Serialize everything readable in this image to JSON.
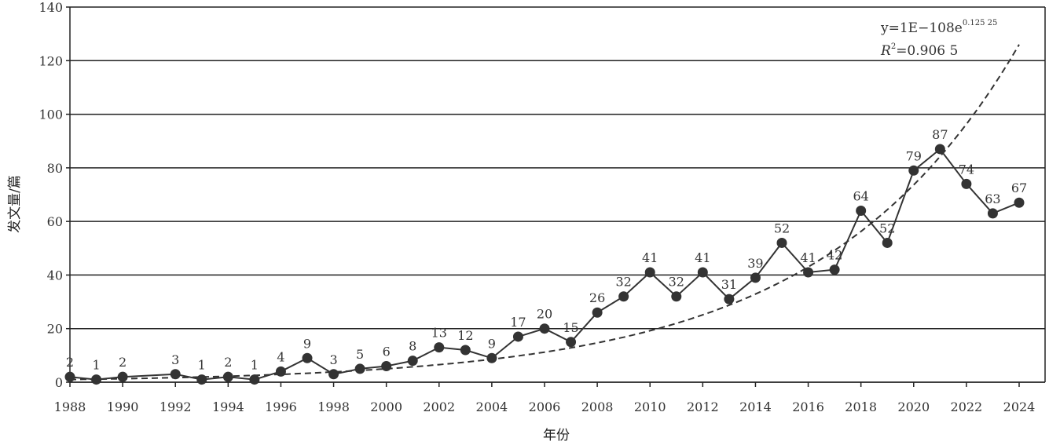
{
  "chart_data": {
    "type": "line",
    "xlabel": "年份",
    "ylabel": "发文量/篇",
    "ylim": [
      0,
      140
    ],
    "yticks": [
      0,
      20,
      40,
      60,
      80,
      100,
      120,
      140
    ],
    "xlim": [
      1988,
      2024
    ],
    "xticks": [
      1988,
      1990,
      1992,
      1994,
      1996,
      1998,
      2000,
      2002,
      2004,
      2006,
      2008,
      2010,
      2012,
      2014,
      2016,
      2018,
      2020,
      2022,
      2024
    ],
    "grid": "horizontal",
    "series": [
      {
        "x": [
          1988,
          1989,
          1990,
          1992,
          1993,
          1994,
          1995,
          1996,
          1997,
          1998,
          1999,
          2000,
          2001,
          2002,
          2003,
          2004,
          2005,
          2006,
          2007,
          2008,
          2009,
          2010,
          2011,
          2012,
          2013,
          2014,
          2015,
          2016,
          2017,
          2018,
          2019,
          2020,
          2021,
          2022,
          2023,
          2024
        ],
        "values": [
          2,
          1,
          2,
          3,
          1,
          2,
          1,
          4,
          9,
          3,
          5,
          6,
          8,
          13,
          12,
          9,
          17,
          20,
          15,
          26,
          32,
          41,
          32,
          41,
          31,
          39,
          52,
          41,
          42,
          64,
          52,
          79,
          87,
          74,
          63,
          67
        ]
      }
    ],
    "trendline": {
      "type": "exponential",
      "style": "dashed",
      "equation_main": "y=1E−108e",
      "equation_exp": "0.125 25",
      "r2_label": "R",
      "r2_sup": "2",
      "r2_value": "=0.906 5",
      "x_end": 2024,
      "y_end": 126
    }
  }
}
